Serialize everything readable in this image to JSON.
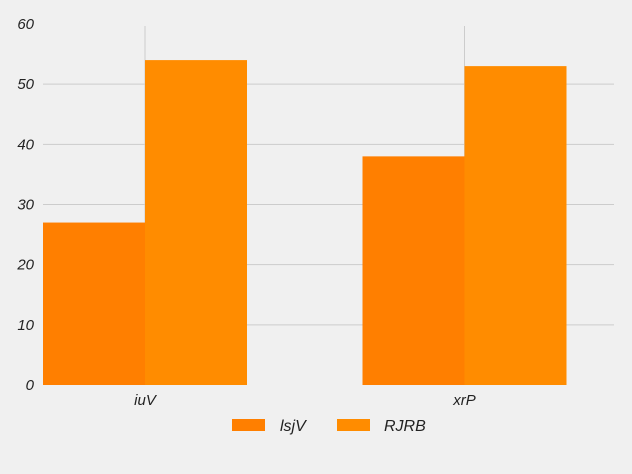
{
  "chart_data": {
    "type": "bar",
    "title": "",
    "xlabel": "",
    "ylabel": "",
    "categories": [
      "iuV",
      "xrP"
    ],
    "series": [
      {
        "name": "lsjV",
        "values": [
          27,
          38
        ],
        "color": "#ff7f00"
      },
      {
        "name": "RJRB",
        "values": [
          54,
          53
        ],
        "color": "#ff8c00"
      }
    ],
    "ylim": [
      0,
      60
    ],
    "yticks": [
      "0",
      "10",
      "20",
      "30",
      "40",
      "50",
      "60"
    ],
    "grid": true,
    "legend_position": "bottom",
    "colors": {
      "background": "#f0f0f0",
      "gridline": "#cccccc",
      "text": "#222222"
    }
  }
}
